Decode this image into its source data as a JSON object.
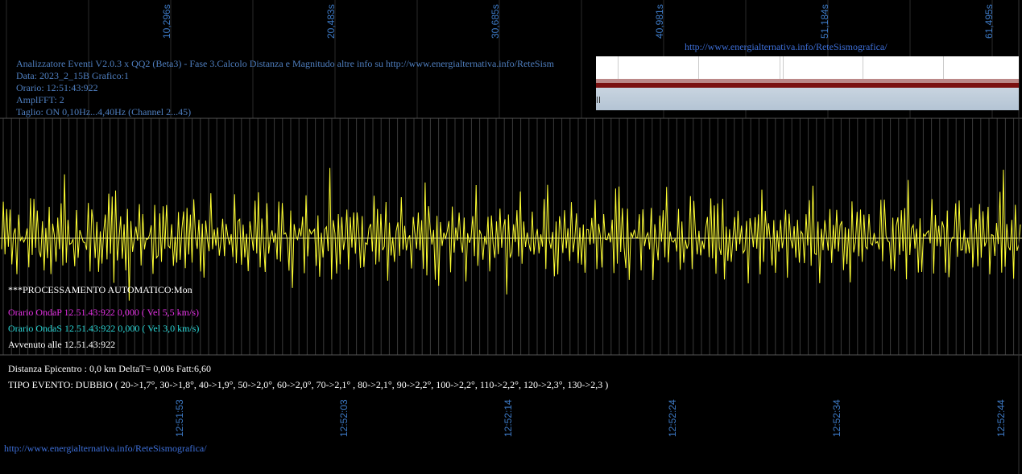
{
  "top_time_ticks": [
    "10,296s",
    "20,483s",
    "30,685s",
    "40,981s",
    "51,184s",
    "61,495s"
  ],
  "bottom_time_ticks": [
    "12:51:53",
    "12:52:03",
    "12:52:14",
    "12:52:24",
    "12:52:34",
    "12:52:44"
  ],
  "top_url": "http://www.energialternativa.info/ReteSismografica/",
  "bottom_url": "http://www.energialternativa.info/ReteSismografica/",
  "header": {
    "line1": "Analizzatore Eventi V2.0.3 x QQ2 (Beta3) - Fase 3.Calcolo Distanza e Magnitudo altre info su http://www.energialternativa.info/ReteSism",
    "line2": "Data: 2023_2_15B Grafico:1",
    "line3": "Orario: 12:51:43:922",
    "line4": "AmplFFT: 2",
    "line5": "Taglio: ON 0,10Hz...4,40Hz       (Channel 2...45)"
  },
  "processing": "***PROCESSAMENTO AUTOMATICO:Mon",
  "onda_p": "Orario OndaP 12.51.43:922  0,000 ( Vel 5,5 km/s)",
  "onda_s": "Orario OndaS 12.51.43:922  0,000 ( Vel 3,0 km/s)",
  "avvenuto": "Avvenuto alle 12.51.43:922",
  "distanza": "Distanza Epicentro : 0,0 km DeltaT= 0,00s  Fatt:6,60",
  "tipo_evento": "TIPO EVENTO: DUBBIO ( 20->1,7°, 30->1,8°, 40->1,9°, 50->2,0°, 60->2,0°, 70->2,1° , 80->2,1°, 90->2,2°, 100->2,2°, 110->2,2°, 120->2,3°, 130->2,3 )",
  "colors": {
    "background": "#000000",
    "trace": "#ffff33",
    "grid": "#444444",
    "baseline": "#d8d8a0",
    "tick_text": "#3d7ac6",
    "header_text": "#4f7fc0"
  },
  "chart_data": {
    "type": "line",
    "series": [
      {
        "values": [
          0.6,
          1.2,
          -1.1,
          0.4,
          1.5,
          -0.6,
          -1.3,
          0.9,
          1.7,
          -1.0,
          -0.3,
          1.4,
          -1.5,
          0.7,
          2.0,
          -0.9,
          -1.6,
          1.1,
          0.5,
          -1.4,
          1.6,
          -0.2,
          -1.2,
          1.3,
          0.8,
          -1.7,
          1.0,
          0.3,
          -0.8,
          1.5,
          -1.0,
          -0.5,
          1.9,
          -1.3,
          0.6,
          1.2,
          -1.6,
          0.2,
          1.4,
          -0.7,
          -1.1,
          2.2,
          -1.8,
          0.8,
          1.0,
          -1.2,
          0.5,
          1.6,
          -1.4,
          -0.3,
          1.3,
          -0.9,
          0.7,
          1.8,
          -1.5,
          -0.6,
          1.1,
          0.4,
          -1.3,
          1.7,
          -0.4,
          -1.0,
          1.5,
          -1.6,
          0.9,
          1.2,
          -0.8,
          0.3,
          1.6,
          -1.7,
          0.6,
          1.0,
          -1.2,
          -0.4,
          1.4,
          -1.0,
          0.8,
          1.9,
          -1.4,
          0.1,
          1.2,
          -1.5,
          0.7,
          1.3,
          -0.6,
          -1.1,
          1.6,
          -0.9,
          0.5,
          1.8,
          -1.6,
          -0.2,
          1.1,
          -1.3,
          0.9,
          1.5,
          -0.7,
          -0.9,
          1.4,
          -1.2,
          0.4,
          1.7,
          -1.5,
          0.6,
          1.0,
          -0.8,
          -1.3,
          1.6,
          -0.5,
          0.2,
          1.3,
          -1.4,
          0.8,
          1.7,
          -1.1,
          -0.6,
          1.2,
          0.5,
          -1.5,
          1.4,
          -0.3,
          -1.0,
          1.8,
          -1.2,
          0.7,
          2.1,
          -1.6,
          0.3
        ]
      }
    ],
    "grid": true
  }
}
